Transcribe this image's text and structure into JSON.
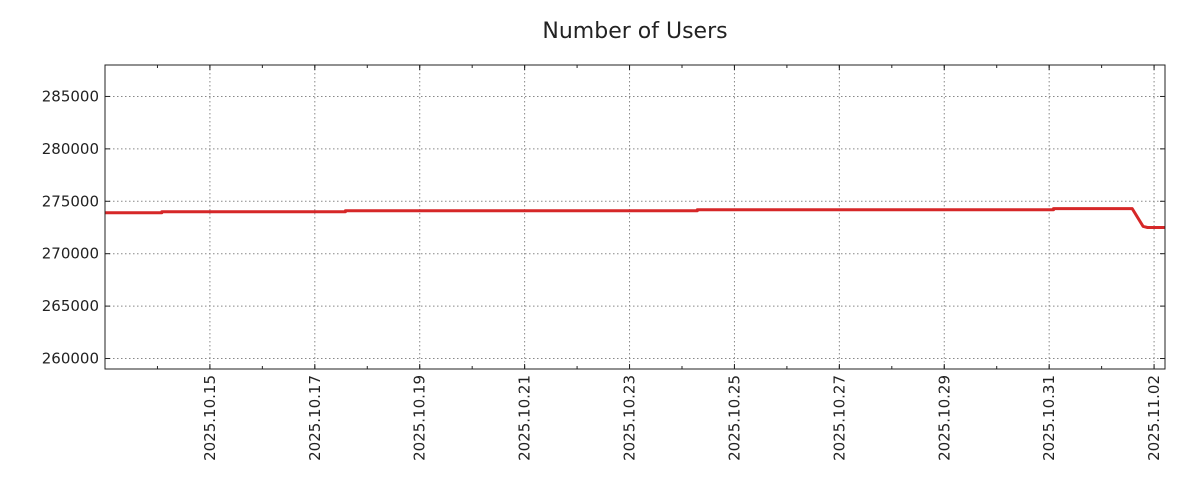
{
  "chart_data": {
    "type": "line",
    "title": "Number of Users",
    "xlabel": "",
    "ylabel": "",
    "x_type": "date",
    "xlim": [
      "2025-10-13",
      "2025-11-02T05:00"
    ],
    "ylim": [
      259000,
      288000
    ],
    "x_ticks": [
      "2025.10.15",
      "2025.10.17",
      "2025.10.19",
      "2025.10.21",
      "2025.10.23",
      "2025.10.25",
      "2025.10.27",
      "2025.10.29",
      "2025.10.31",
      "2025.11.02"
    ],
    "y_ticks": [
      "260000",
      "265000",
      "270000",
      "275000",
      "280000",
      "285000"
    ],
    "grid": true,
    "legend": "none",
    "series": [
      {
        "color": "#d62728",
        "points": [
          {
            "x": "2025-10-13T00:00",
            "y": 273900
          },
          {
            "x": "2025-10-14T02:00",
            "y": 273900
          },
          {
            "x": "2025-10-14T02:00",
            "y": 274000
          },
          {
            "x": "2025-10-17T14:00",
            "y": 274000
          },
          {
            "x": "2025-10-17T14:00",
            "y": 274100
          },
          {
            "x": "2025-10-24T07:00",
            "y": 274100
          },
          {
            "x": "2025-10-24T07:00",
            "y": 274200
          },
          {
            "x": "2025-10-31T02:00",
            "y": 274200
          },
          {
            "x": "2025-10-31T02:00",
            "y": 274300
          },
          {
            "x": "2025-11-01T14:00",
            "y": 274300
          },
          {
            "x": "2025-11-01T19:00",
            "y": 272600
          },
          {
            "x": "2025-11-01T21:00",
            "y": 272500
          },
          {
            "x": "2025-11-02T05:00",
            "y": 272500
          }
        ]
      }
    ]
  }
}
